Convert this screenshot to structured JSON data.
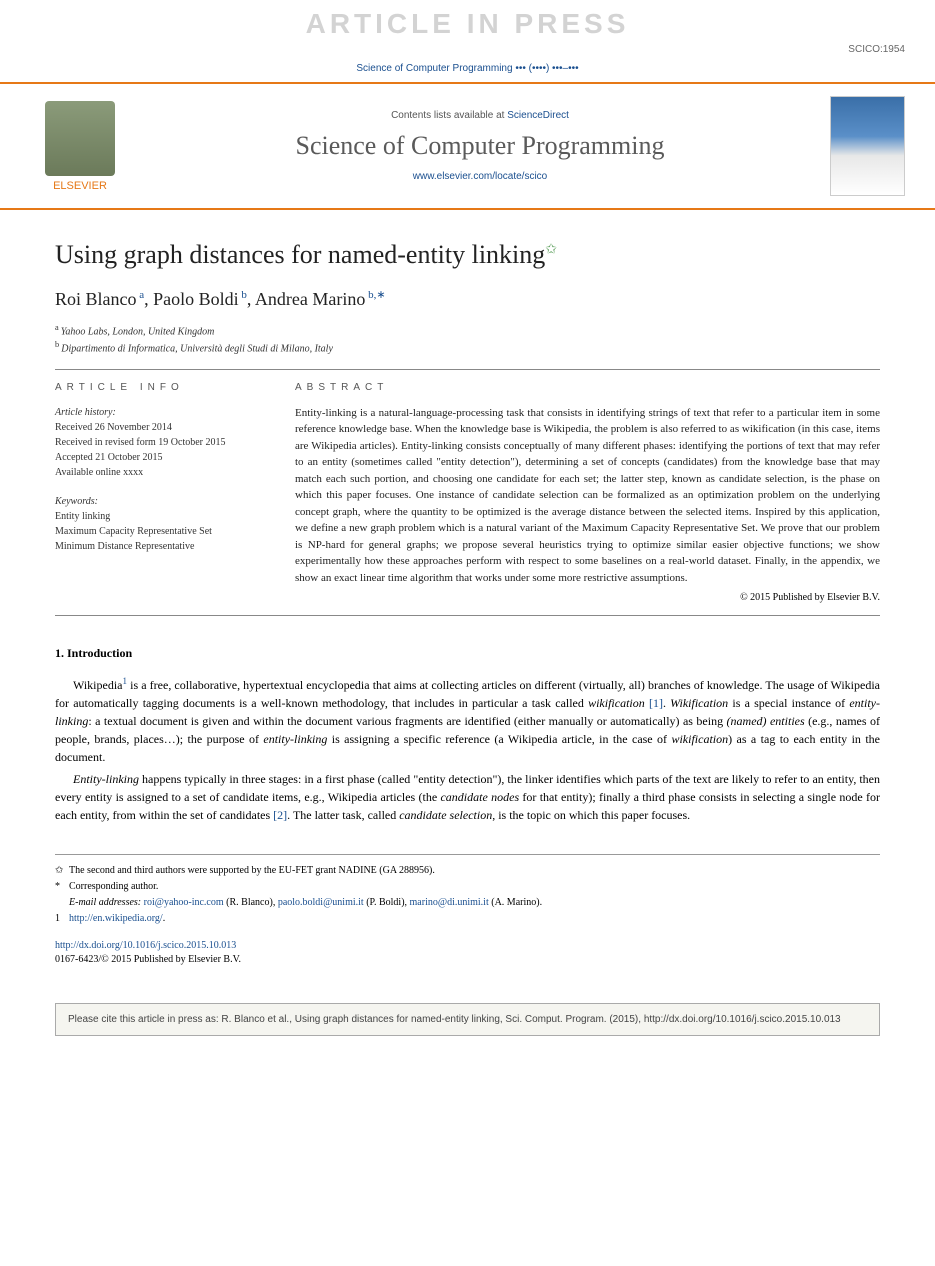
{
  "watermark": "ARTICLE IN PRESS",
  "article_code": "SCICO:1954",
  "journal_ref_line": "Science of Computer Programming ••• (••••) •••–•••",
  "header": {
    "contents_prefix": "Contents lists available at ",
    "contents_link": "ScienceDirect",
    "journal_title": "Science of Computer Programming",
    "journal_url": "www.elsevier.com/locate/scico",
    "publisher_label": "ELSEVIER"
  },
  "title": "Using graph distances for named-entity linking",
  "title_mark": "✩",
  "authors_html": "Roi Blanco",
  "authors": [
    {
      "name": "Roi Blanco",
      "sup": "a"
    },
    {
      "name": "Paolo Boldi",
      "sup": "b"
    },
    {
      "name": "Andrea Marino",
      "sup": "b,∗"
    }
  ],
  "affiliations": [
    {
      "sup": "a",
      "text": "Yahoo Labs, London, United Kingdom"
    },
    {
      "sup": "b",
      "text": "Dipartimento di Informatica, Università degli Studi di Milano, Italy"
    }
  ],
  "info": {
    "header": "ARTICLE INFO",
    "history_label": "Article history:",
    "history": [
      "Received 26 November 2014",
      "Received in revised form 19 October 2015",
      "Accepted 21 October 2015",
      "Available online xxxx"
    ],
    "keywords_label": "Keywords:",
    "keywords": [
      "Entity linking",
      "Maximum Capacity Representative Set",
      "Minimum Distance Representative"
    ]
  },
  "abstract": {
    "header": "ABSTRACT",
    "text": "Entity-linking is a natural-language-processing task that consists in identifying strings of text that refer to a particular item in some reference knowledge base. When the knowledge base is Wikipedia, the problem is also referred to as wikification (in this case, items are Wikipedia articles). Entity-linking consists conceptually of many different phases: identifying the portions of text that may refer to an entity (sometimes called \"entity detection\"), determining a set of concepts (candidates) from the knowledge base that may match each such portion, and choosing one candidate for each set; the latter step, known as candidate selection, is the phase on which this paper focuses. One instance of candidate selection can be formalized as an optimization problem on the underlying concept graph, where the quantity to be optimized is the average distance between the selected items. Inspired by this application, we define a new graph problem which is a natural variant of the Maximum Capacity Representative Set. We prove that our problem is NP-hard for general graphs; we propose several heuristics trying to optimize similar easier objective functions; we show experimentally how these approaches perform with respect to some baselines on a real-world dataset. Finally, in the appendix, we show an exact linear time algorithm that works under some more restrictive assumptions.",
    "copyright": "© 2015 Published by Elsevier B.V."
  },
  "intro": {
    "heading": "1. Introduction",
    "p1": "Wikipedia¹ is a free, collaborative, hypertextual encyclopedia that aims at collecting articles on different (virtually, all) branches of knowledge. The usage of Wikipedia for automatically tagging documents is a well-known methodology, that includes in particular a task called wikification [1]. Wikification is a special instance of entity-linking: a textual document is given and within the document various fragments are identified (either manually or automatically) as being (named) entities (e.g., names of people, brands, places…); the purpose of entity-linking is assigning a specific reference (a Wikipedia article, in the case of wikification) as a tag to each entity in the document.",
    "p2": "Entity-linking happens typically in three stages: in a first phase (called \"entity detection\"), the linker identifies which parts of the text are likely to refer to an entity, then every entity is assigned to a set of candidate items, e.g., Wikipedia articles (the candidate nodes for that entity); finally a third phase consists in selecting a single node for each entity, from within the set of candidates [2]. The latter task, called candidate selection, is the topic on which this paper focuses."
  },
  "footnotes": {
    "funding": "The second and third authors were supported by the EU-FET grant NADINE (GA 288956).",
    "corresponding": "Corresponding author.",
    "emails_label": "E-mail addresses:",
    "emails": [
      {
        "addr": "roi@yahoo-inc.com",
        "name": "(R. Blanco)"
      },
      {
        "addr": "paolo.boldi@unimi.it",
        "name": "(P. Boldi)"
      },
      {
        "addr": "marino@di.unimi.it",
        "name": "(A. Marino)"
      }
    ],
    "wiki_url": "http://en.wikipedia.org/"
  },
  "doi": {
    "url": "http://dx.doi.org/10.1016/j.scico.2015.10.013",
    "issn_line": "0167-6423/© 2015 Published by Elsevier B.V."
  },
  "citation_box": "Please cite this article in press as: R. Blanco et al., Using graph distances for named-entity linking, Sci. Comput. Program. (2015), http://dx.doi.org/10.1016/j.scico.2015.10.013",
  "colors": {
    "accent_orange": "#e67817",
    "link_blue": "#1a4f8f",
    "watermark_gray": "#d3d3d3"
  }
}
